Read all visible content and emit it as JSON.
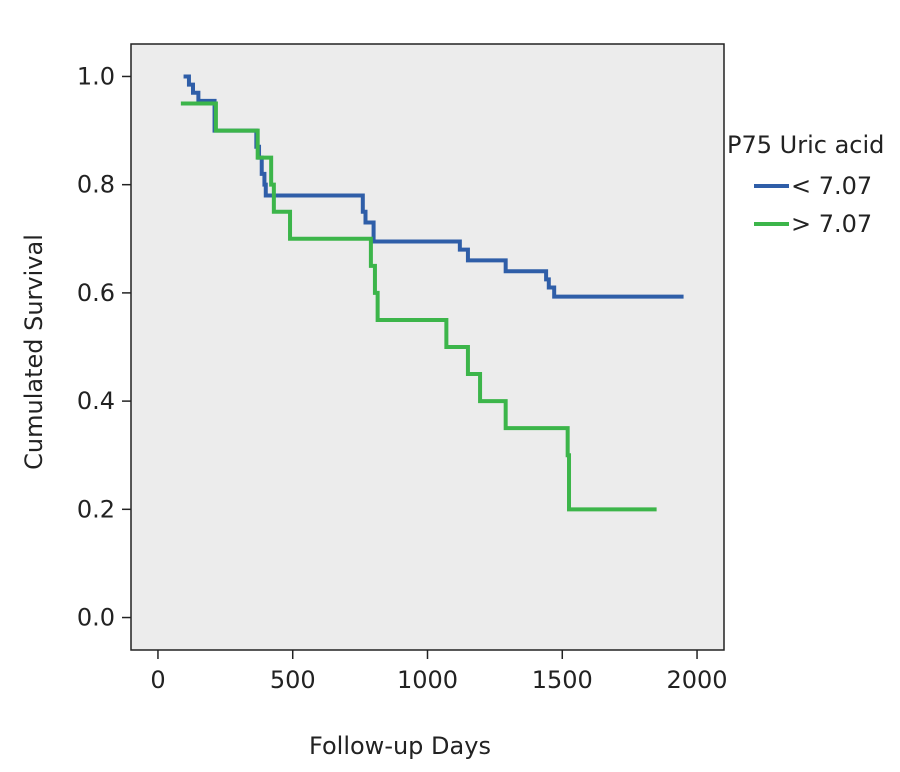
{
  "chart_data": {
    "type": "line",
    "step": true,
    "xlabel": "Follow-up Days",
    "ylabel": "Cumulated Survival",
    "xlim": [
      -100,
      2100
    ],
    "ylim": [
      -0.06,
      1.06
    ],
    "xticks": [
      0,
      500,
      1000,
      1500,
      2000
    ],
    "xtick_labels": [
      "0",
      "500",
      "1000",
      "1500",
      "2000"
    ],
    "yticks": [
      0.0,
      0.2,
      0.4,
      0.6,
      0.8,
      1.0
    ],
    "ytick_labels": [
      "0.0",
      "0.2",
      "0.4",
      "0.6",
      "0.8",
      "1.0"
    ],
    "grid": false,
    "background": "#ececec",
    "legend": {
      "title": "P75 Uric acid",
      "placement": "right"
    },
    "series": [
      {
        "name": "< 7.07",
        "color": "#2f5ea8",
        "points": [
          [
            95,
            1.0
          ],
          [
            115,
            0.985
          ],
          [
            130,
            0.97
          ],
          [
            150,
            0.955
          ],
          [
            210,
            0.9
          ],
          [
            365,
            0.87
          ],
          [
            375,
            0.85
          ],
          [
            385,
            0.82
          ],
          [
            395,
            0.8
          ],
          [
            400,
            0.78
          ],
          [
            760,
            0.75
          ],
          [
            770,
            0.73
          ],
          [
            800,
            0.695
          ],
          [
            1120,
            0.68
          ],
          [
            1150,
            0.66
          ],
          [
            1290,
            0.64
          ],
          [
            1440,
            0.625
          ],
          [
            1450,
            0.61
          ],
          [
            1470,
            0.593
          ],
          [
            1950,
            0.593
          ]
        ]
      },
      {
        "name": "> 7.07",
        "color": "#3cb54a",
        "points": [
          [
            85,
            0.95
          ],
          [
            215,
            0.9
          ],
          [
            370,
            0.85
          ],
          [
            420,
            0.8
          ],
          [
            430,
            0.75
          ],
          [
            490,
            0.7
          ],
          [
            790,
            0.65
          ],
          [
            805,
            0.6
          ],
          [
            815,
            0.55
          ],
          [
            1070,
            0.5
          ],
          [
            1150,
            0.45
          ],
          [
            1195,
            0.4
          ],
          [
            1290,
            0.35
          ],
          [
            1520,
            0.3
          ],
          [
            1525,
            0.2
          ],
          [
            1850,
            0.2
          ]
        ]
      }
    ]
  }
}
